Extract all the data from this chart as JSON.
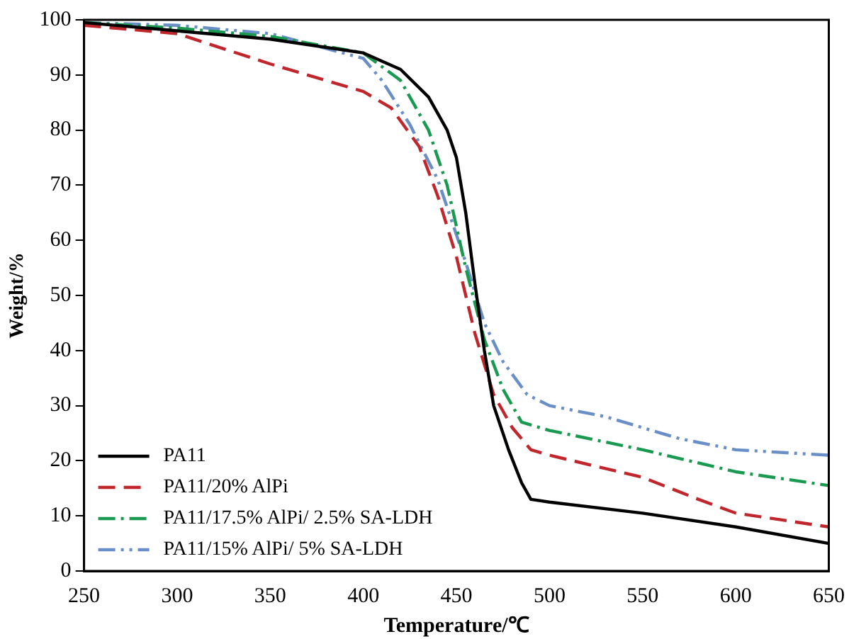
{
  "chart_data": {
    "type": "line",
    "xlabel": "Temperature/℃",
    "ylabel": "Weight/%",
    "xlim": [
      250,
      650
    ],
    "ylim": [
      0,
      100
    ],
    "xticks": [
      250,
      300,
      350,
      400,
      450,
      500,
      550,
      600,
      650
    ],
    "yticks": [
      0,
      10,
      20,
      30,
      40,
      50,
      60,
      70,
      80,
      90,
      100
    ],
    "grid": false,
    "legend": "bottom left",
    "marker": "none",
    "series": [
      {
        "name": "PA11",
        "color": "#000000",
        "line_style": "solid",
        "x": [
          250,
          300,
          350,
          400,
          420,
          435,
          445,
          450,
          455,
          460,
          465,
          470,
          478,
          485,
          490,
          500,
          550,
          600,
          650
        ],
        "values": [
          99.5,
          98,
          96.5,
          94,
          91,
          86,
          80,
          75,
          65,
          52,
          40,
          30,
          22,
          16,
          13,
          12.5,
          10.5,
          8,
          5
        ]
      },
      {
        "name": "PA11/20% AlPi",
        "color": "#c0272d",
        "line_style": "dashed",
        "x": [
          250,
          300,
          350,
          400,
          415,
          430,
          440,
          450,
          460,
          470,
          480,
          490,
          500,
          550,
          580,
          600,
          650
        ],
        "values": [
          99,
          97.5,
          92,
          87,
          84,
          77,
          68,
          57,
          43,
          32,
          26,
          22,
          21,
          17,
          13,
          10.5,
          8
        ]
      },
      {
        "name": "PA11/17.5% AlPi/ 2.5% SA-LDH",
        "color": "#1a9a50",
        "line_style": "dashdot",
        "x": [
          250,
          300,
          350,
          400,
          420,
          435,
          445,
          455,
          465,
          475,
          485,
          500,
          550,
          600,
          650
        ],
        "values": [
          99.5,
          98.5,
          97,
          94,
          89,
          80,
          70,
          55,
          42,
          33,
          27,
          25.5,
          22,
          18,
          15.5
        ]
      },
      {
        "name": "PA11/15% AlPi/ 5% SA-LDH",
        "color": "#6a8fc7",
        "line_style": "dashdotdot",
        "x": [
          250,
          300,
          350,
          400,
          410,
          425,
          440,
          455,
          465,
          475,
          488,
          500,
          530,
          570,
          600,
          650
        ],
        "values": [
          99.5,
          99,
          97.5,
          93,
          89,
          81,
          71,
          56,
          45,
          38,
          32,
          30,
          28,
          24,
          22,
          21
        ]
      }
    ]
  }
}
